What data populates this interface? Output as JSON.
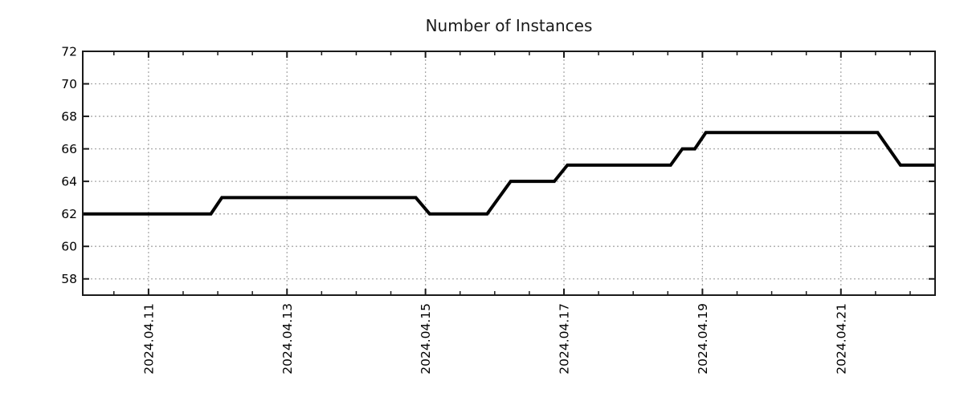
{
  "chart_data": {
    "type": "line",
    "title": "Number of Instances",
    "legend_position": "none",
    "grid": true,
    "x_axis": {
      "unit": "days since 2024-04-10 00:00",
      "range": [
        0.05,
        12.36
      ],
      "major_ticks": [
        {
          "t": 1,
          "label": "2024.04.11"
        },
        {
          "t": 3,
          "label": "2024.04.13"
        },
        {
          "t": 5,
          "label": "2024.04.15"
        },
        {
          "t": 7,
          "label": "2024.04.17"
        },
        {
          "t": 9,
          "label": "2024.04.19"
        },
        {
          "t": 11,
          "label": "2024.04.21"
        }
      ],
      "minor_tick_step": 0.5
    },
    "y_axis": {
      "range": [
        57,
        72
      ],
      "ticks": [
        58,
        60,
        62,
        64,
        66,
        68,
        70,
        72
      ]
    },
    "series": [
      {
        "name": "Number of Instances",
        "color": "#000000",
        "line_width": 4,
        "points": [
          [
            0.05,
            62
          ],
          [
            1.9,
            62
          ],
          [
            2.06,
            63
          ],
          [
            4.86,
            63
          ],
          [
            5.06,
            62
          ],
          [
            5.89,
            62
          ],
          [
            6.23,
            64
          ],
          [
            6.86,
            64
          ],
          [
            7.05,
            65
          ],
          [
            8.54,
            65
          ],
          [
            8.71,
            66
          ],
          [
            8.89,
            66
          ],
          [
            9.05,
            67
          ],
          [
            11.53,
            67
          ],
          [
            11.86,
            65
          ],
          [
            12.36,
            65
          ]
        ]
      }
    ],
    "colors": {
      "background": "#ffffff",
      "axis_border": "#1a1a1a",
      "grid_line": "#aaaaaa",
      "tick_mark": "#1a1a1a",
      "label_text": "#000000",
      "title_text": "#1a1a1a"
    }
  }
}
